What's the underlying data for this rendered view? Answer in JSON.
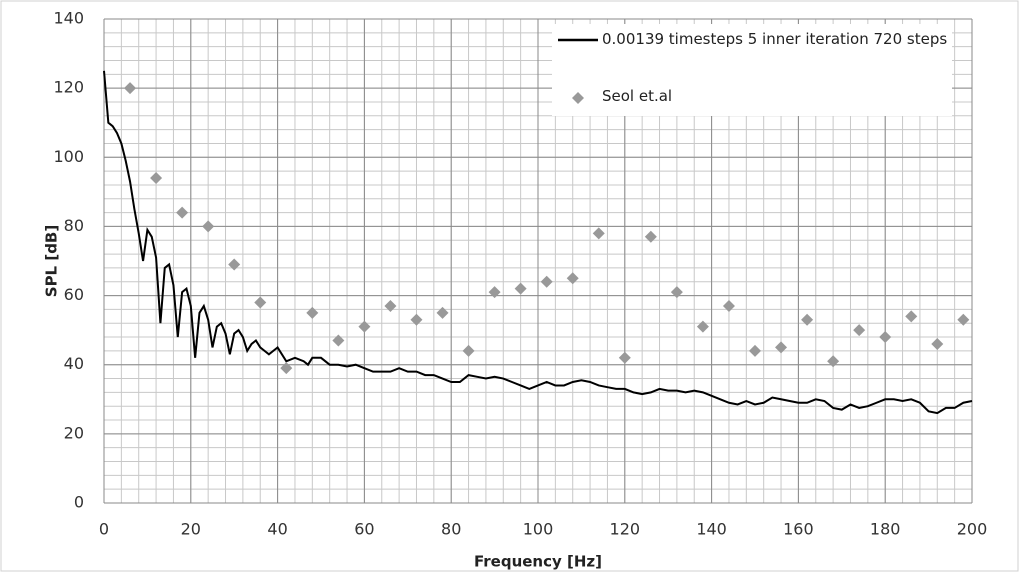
{
  "chart_data": {
    "type": "line",
    "xlabel": "Frequency [Hz]",
    "ylabel": "SPL [dB]",
    "xlim": [
      0,
      200
    ],
    "ylim": [
      0,
      140
    ],
    "xticks": [
      0,
      20,
      40,
      60,
      80,
      100,
      120,
      140,
      160,
      180,
      200
    ],
    "yticks": [
      0,
      20,
      40,
      60,
      80,
      100,
      120,
      140
    ],
    "grid": true,
    "xminor": 4,
    "yminor": 4,
    "legend": "top-right",
    "series": [
      {
        "name": "0.00139 timesteps 5 inner iteration 720 steps",
        "mode": "line",
        "color": "#000000",
        "x": [
          0,
          1,
          2,
          3,
          4,
          5,
          6,
          7,
          8,
          9,
          10,
          11,
          12,
          13,
          14,
          15,
          16,
          17,
          18,
          19,
          20,
          21,
          22,
          23,
          24,
          25,
          26,
          27,
          28,
          29,
          30,
          31,
          32,
          33,
          34,
          35,
          36,
          37,
          38,
          39,
          40,
          42,
          44,
          46,
          47,
          48,
          50,
          52,
          54,
          56,
          58,
          60,
          62,
          64,
          66,
          68,
          70,
          72,
          74,
          76,
          78,
          80,
          82,
          84,
          86,
          88,
          90,
          92,
          94,
          96,
          98,
          100,
          102,
          104,
          106,
          108,
          110,
          112,
          114,
          116,
          118,
          120,
          122,
          124,
          126,
          128,
          130,
          132,
          134,
          136,
          138,
          140,
          142,
          144,
          146,
          148,
          150,
          152,
          154,
          156,
          158,
          160,
          162,
          164,
          166,
          168,
          170,
          172,
          174,
          176,
          178,
          180,
          182,
          184,
          186,
          188,
          190,
          192,
          194,
          196,
          198,
          200
        ],
        "values": [
          125,
          110,
          109,
          107,
          104,
          99,
          93,
          85,
          78,
          70,
          79,
          77,
          71,
          52,
          68,
          69,
          63,
          48,
          61,
          62,
          57,
          42,
          55,
          57,
          53,
          45,
          51,
          52,
          49,
          43,
          49,
          50,
          48,
          44,
          46,
          47,
          45,
          44,
          43,
          44,
          45,
          41,
          42,
          41,
          40,
          42,
          42,
          40,
          40,
          39.5,
          40,
          39,
          38,
          38,
          38,
          39,
          38,
          38,
          37,
          37,
          36,
          35,
          35,
          37,
          36.5,
          36,
          36.5,
          36,
          35,
          34,
          33,
          34,
          35,
          34,
          34,
          35,
          35.5,
          35,
          34,
          33.5,
          33,
          33,
          32,
          31.5,
          32,
          33,
          32.5,
          32.5,
          32,
          32.5,
          32,
          31,
          30,
          29,
          28.5,
          29.5,
          28.5,
          29,
          30.5,
          30,
          29.5,
          29,
          29,
          30,
          29.5,
          27.5,
          27,
          28.5,
          27.5,
          28,
          29,
          30,
          30,
          29.5,
          30,
          29,
          26.5,
          26,
          27.5,
          27.5,
          29,
          29.5
        ]
      },
      {
        "name": "Seol et.al",
        "mode": "markers",
        "color": "#999999",
        "x": [
          6,
          12,
          18,
          24,
          30,
          36,
          42,
          48,
          54,
          60,
          66,
          72,
          78,
          84,
          90,
          96,
          102,
          108,
          114,
          120,
          126,
          132,
          138,
          144,
          150,
          156,
          162,
          168,
          174,
          180,
          186,
          192,
          198
        ],
        "values": [
          120,
          94,
          84,
          80,
          69,
          58,
          39,
          55,
          47,
          51,
          57,
          53,
          55,
          44,
          61,
          62,
          64,
          65,
          78,
          42,
          77,
          61,
          51,
          57,
          44,
          45,
          53,
          41,
          50,
          48,
          54,
          46,
          53
        ]
      }
    ]
  }
}
